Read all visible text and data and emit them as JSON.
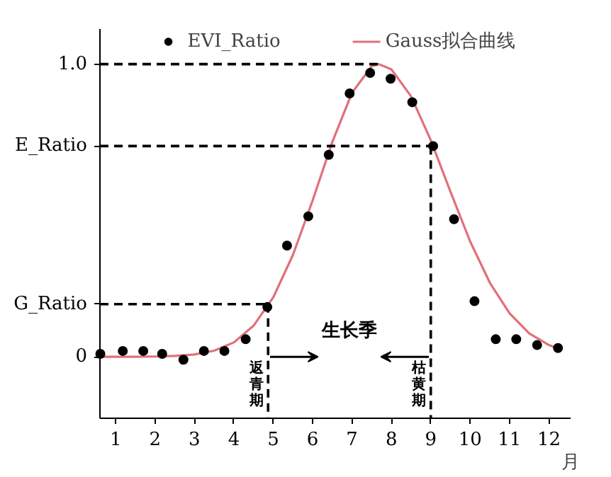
{
  "chart_data": {
    "type": "scatter",
    "xlabel": "月",
    "xlim": [
      0.6,
      12.55
    ],
    "ylim": [
      -0.21,
      1.12
    ],
    "xticks": [
      1,
      2,
      3,
      4,
      5,
      6,
      7,
      8,
      9,
      10,
      11,
      12
    ],
    "yticks": [
      0,
      {
        "value": 0.18,
        "label": "G_Ratio"
      },
      {
        "value": 0.72,
        "label": "E_Ratio"
      },
      {
        "value": 1,
        "label": "1.0"
      }
    ],
    "grid": false,
    "legend": "top",
    "series": [
      {
        "name": "EVI_Ratio",
        "marker": "circle",
        "color": "#000000",
        "x": [
          0.61,
          1.18,
          1.7,
          2.18,
          2.72,
          3.24,
          3.76,
          4.3,
          4.85,
          5.35,
          5.89,
          6.41,
          6.94,
          7.46,
          7.98,
          8.53,
          9.06,
          9.59,
          10.11,
          10.65,
          11.17,
          11.7,
          12.23
        ],
        "values": [
          0.01,
          0.02,
          0.02,
          0.01,
          -0.01,
          0.02,
          0.02,
          0.06,
          0.17,
          0.38,
          0.48,
          0.69,
          0.9,
          0.97,
          0.95,
          0.87,
          0.72,
          0.47,
          0.19,
          0.06,
          0.06,
          0.04,
          0.03
        ]
      },
      {
        "name": "Gauss拟合曲线",
        "type": "line",
        "color": "#e0707a",
        "x": [
          0.6,
          1.0,
          1.5,
          2.0,
          2.5,
          3.0,
          3.5,
          4.0,
          4.5,
          5.0,
          5.5,
          6.0,
          6.5,
          7.0,
          7.5,
          7.68,
          8.0,
          8.5,
          9.0,
          9.5,
          10.0,
          10.5,
          11.0,
          11.5,
          12.0,
          12.3
        ],
        "values": [
          0,
          0,
          0,
          0.001,
          0.003,
          0.008,
          0.021,
          0.049,
          0.106,
          0.203,
          0.348,
          0.534,
          0.734,
          0.902,
          0.993,
          1.0,
          0.982,
          0.89,
          0.74,
          0.564,
          0.394,
          0.253,
          0.149,
          0.08,
          0.04,
          0.025
        ]
      },
      {
        "type": "line",
        "line_style": "dashed",
        "color": "#000000",
        "x": [
          0.6,
          7.68
        ],
        "values": [
          1,
          1
        ]
      },
      {
        "type": "line",
        "line_style": "dashed",
        "color": "#000000",
        "x": [
          0.6,
          9.0
        ],
        "values": [
          0.72,
          0.72
        ]
      },
      {
        "type": "line",
        "line_style": "dashed",
        "color": "#000000",
        "x": [
          0.6,
          4.87
        ],
        "values": [
          0.18,
          0.18
        ]
      },
      {
        "type": "line",
        "line_style": "dashed",
        "color": "#000000",
        "x": [
          4.87,
          4.87
        ],
        "values": [
          0.18,
          -0.21
        ]
      },
      {
        "type": "line",
        "line_style": "dashed",
        "color": "#000000",
        "x": [
          9.0,
          9.0
        ],
        "values": [
          0.72,
          -0.21
        ]
      }
    ],
    "annotations": [
      "生长季",
      "返青期",
      "枯黄期"
    ]
  }
}
